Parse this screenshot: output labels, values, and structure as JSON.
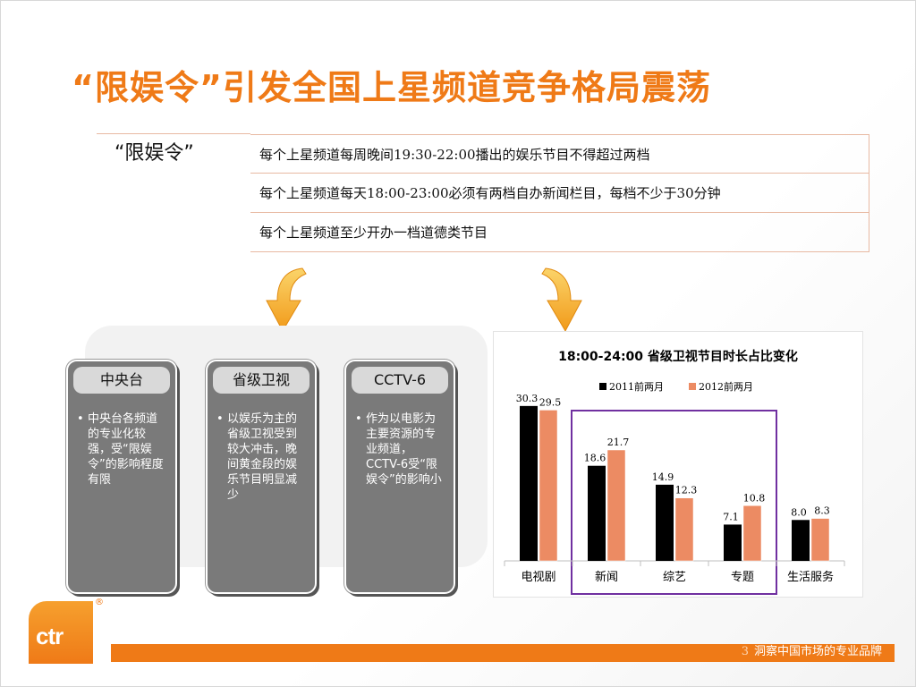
{
  "title": "“限娱令”引发全国上星频道竞争格局震荡",
  "rules": {
    "label": "“限娱令”",
    "items": [
      "每个上星频道每周晚间19:30-22:00播出的娱乐节目不得超过两档",
      "每个上星频道每天18:00-23:00必须有两档自办新闻栏目，每档不少于30分钟",
      "每个上星频道至少开办一档道德类节目"
    ]
  },
  "cards": [
    {
      "title": "中央台",
      "text": "中央台各频道的专业化较强，受“限娱令”的影响程度有限"
    },
    {
      "title": "省级卫视",
      "text": "以娱乐为主的省级卫视受到较大冲击，晚间黄金段的娱乐节目明显减少"
    },
    {
      "title": "CCTV-6",
      "text": "作为以电影为主要资源的专业频道，CCTV-6受“限娱令”的影响小"
    }
  ],
  "chart_data": {
    "type": "bar",
    "title": "18:00-24:00 省级卫视节目时长占比变化",
    "categories": [
      "电视剧",
      "新闻",
      "综艺",
      "专题",
      "生活服务"
    ],
    "series": [
      {
        "name": "2011前两月",
        "values": [
          30.3,
          18.6,
          14.9,
          7.1,
          8.0
        ],
        "color": "#000000"
      },
      {
        "name": "2012前两月",
        "values": [
          29.5,
          21.7,
          12.3,
          10.8,
          8.3
        ],
        "color": "#ec8b63"
      }
    ],
    "ylim": [
      0,
      35
    ],
    "grid": false,
    "legend": "top",
    "highlight_color": "#7030a0"
  },
  "footer": {
    "page": "3",
    "slogan": "洞察中国市场的专业品牌"
  },
  "logo": {
    "text": "ctr",
    "mark": "®"
  },
  "colors": {
    "accent": "#ef7a17",
    "card": "#7a7a7a"
  }
}
